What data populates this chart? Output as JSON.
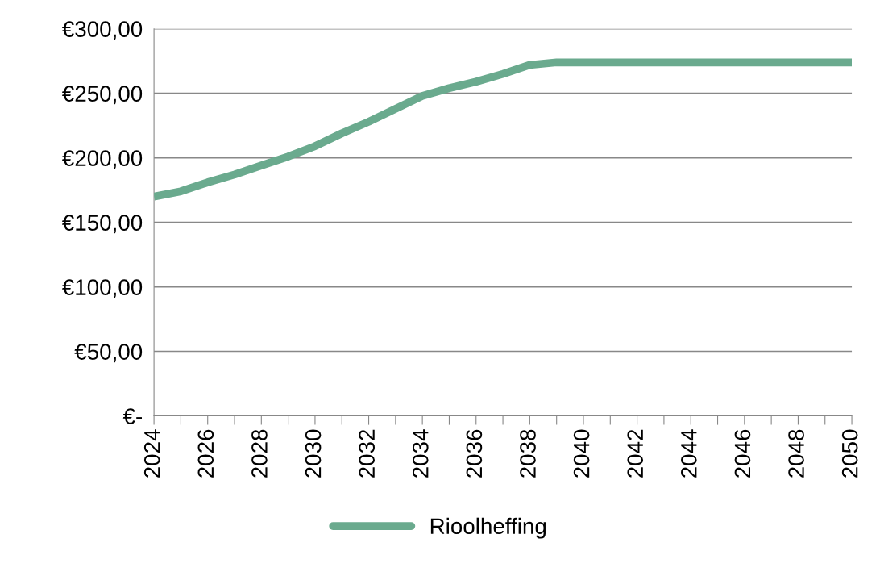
{
  "chart_data": {
    "type": "line",
    "categories": [
      "2024",
      null,
      "2026",
      null,
      "2028",
      null,
      "2030",
      null,
      "2032",
      null,
      "2034",
      null,
      "2036",
      null,
      "2038",
      null,
      "2040",
      null,
      "2042",
      null,
      "2044",
      null,
      "2046",
      null,
      "2048",
      null,
      "2050"
    ],
    "series": [
      {
        "name": "Rioolheffing",
        "color": "#6aaa8e",
        "values": [
          170,
          174,
          181,
          187,
          194,
          201,
          209,
          219,
          228,
          238,
          248,
          254,
          259,
          265,
          272,
          274,
          274,
          274,
          274,
          274,
          274,
          274,
          274,
          274,
          274,
          274,
          274
        ]
      }
    ],
    "ylim": [
      0,
      300
    ],
    "yticks": [
      {
        "value": 0,
        "label": "€-"
      },
      {
        "value": 50,
        "label": "€50,00"
      },
      {
        "value": 100,
        "label": "€100,00"
      },
      {
        "value": 150,
        "label": "€150,00"
      },
      {
        "value": 200,
        "label": "€200,00"
      },
      {
        "value": 250,
        "label": "€250,00"
      },
      {
        "value": 300,
        "label": "€300,00"
      }
    ],
    "grid": "y",
    "legend": "bottom",
    "marker": "none",
    "line_style": "solid"
  }
}
